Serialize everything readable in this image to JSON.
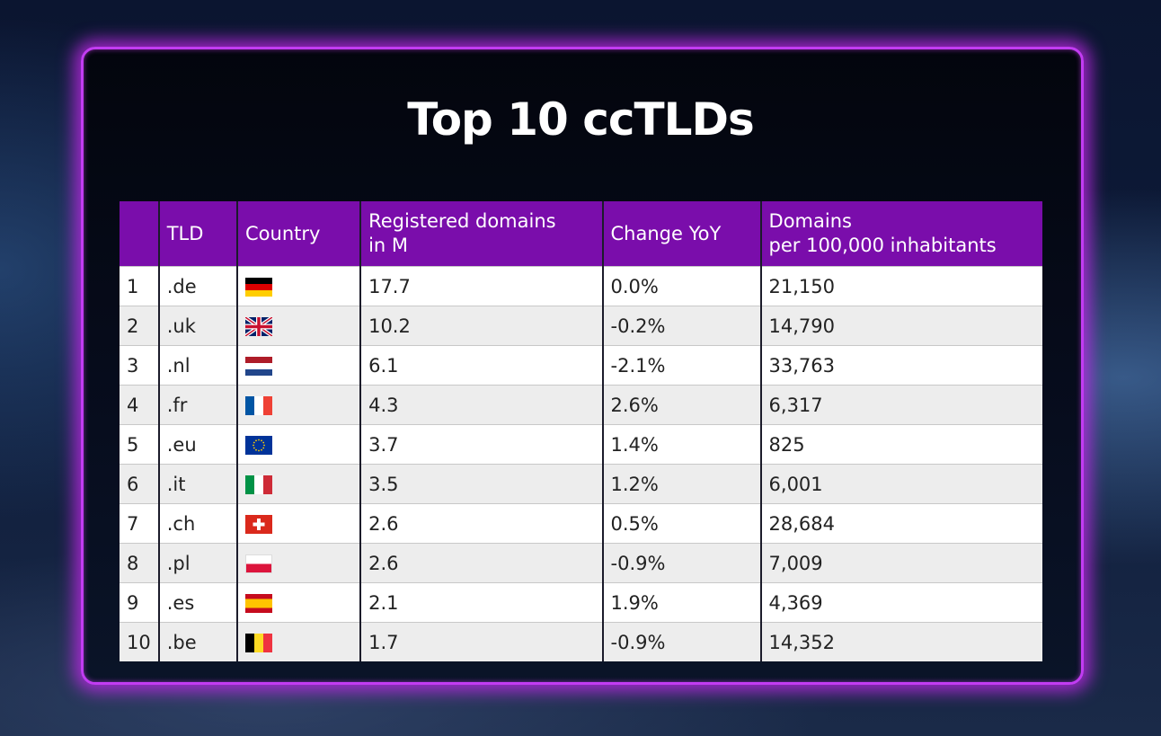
{
  "title": "Top 10 ccTLDs",
  "header": [
    "",
    "TLD",
    "Country",
    "Registered domains\nin M",
    "Change YoY",
    "Domains\nper 100,000 inhabitants"
  ],
  "colors": {
    "header": "#7a0dab",
    "frame": "#c23cf2"
  },
  "rows": [
    {
      "rank": "1",
      "tld": ".de",
      "flag": "germany-flag-icon",
      "domains": "17.7",
      "change": "0.0%",
      "per100k": "21,150"
    },
    {
      "rank": "2",
      "tld": ".uk",
      "flag": "uk-flag-icon",
      "domains": "10.2",
      "change": "-0.2%",
      "per100k": "14,790"
    },
    {
      "rank": "3",
      "tld": ".nl",
      "flag": "netherlands-flag-icon",
      "domains": "6.1",
      "change": "-2.1%",
      "per100k": "33,763"
    },
    {
      "rank": "4",
      "tld": ".fr",
      "flag": "france-flag-icon",
      "domains": "4.3",
      "change": "2.6%",
      "per100k": "6,317"
    },
    {
      "rank": "5",
      "tld": ".eu",
      "flag": "eu-flag-icon",
      "domains": "3.7",
      "change": "1.4%",
      "per100k": "825"
    },
    {
      "rank": "6",
      "tld": ".it",
      "flag": "italy-flag-icon",
      "domains": "3.5",
      "change": "1.2%",
      "per100k": "6,001"
    },
    {
      "rank": "7",
      "tld": ".ch",
      "flag": "switzerland-flag-icon",
      "domains": "2.6",
      "change": "0.5%",
      "per100k": "28,684"
    },
    {
      "rank": "8",
      "tld": ".pl",
      "flag": "poland-flag-icon",
      "domains": "2.6",
      "change": "-0.9%",
      "per100k": "7,009"
    },
    {
      "rank": "9",
      "tld": ".es",
      "flag": "spain-flag-icon",
      "domains": "2.1",
      "change": "1.9%",
      "per100k": "4,369"
    },
    {
      "rank": "10",
      "tld": ".be",
      "flag": "belgium-flag-icon",
      "domains": "1.7",
      "change": "-0.9%",
      "per100k": "14,352"
    }
  ]
}
